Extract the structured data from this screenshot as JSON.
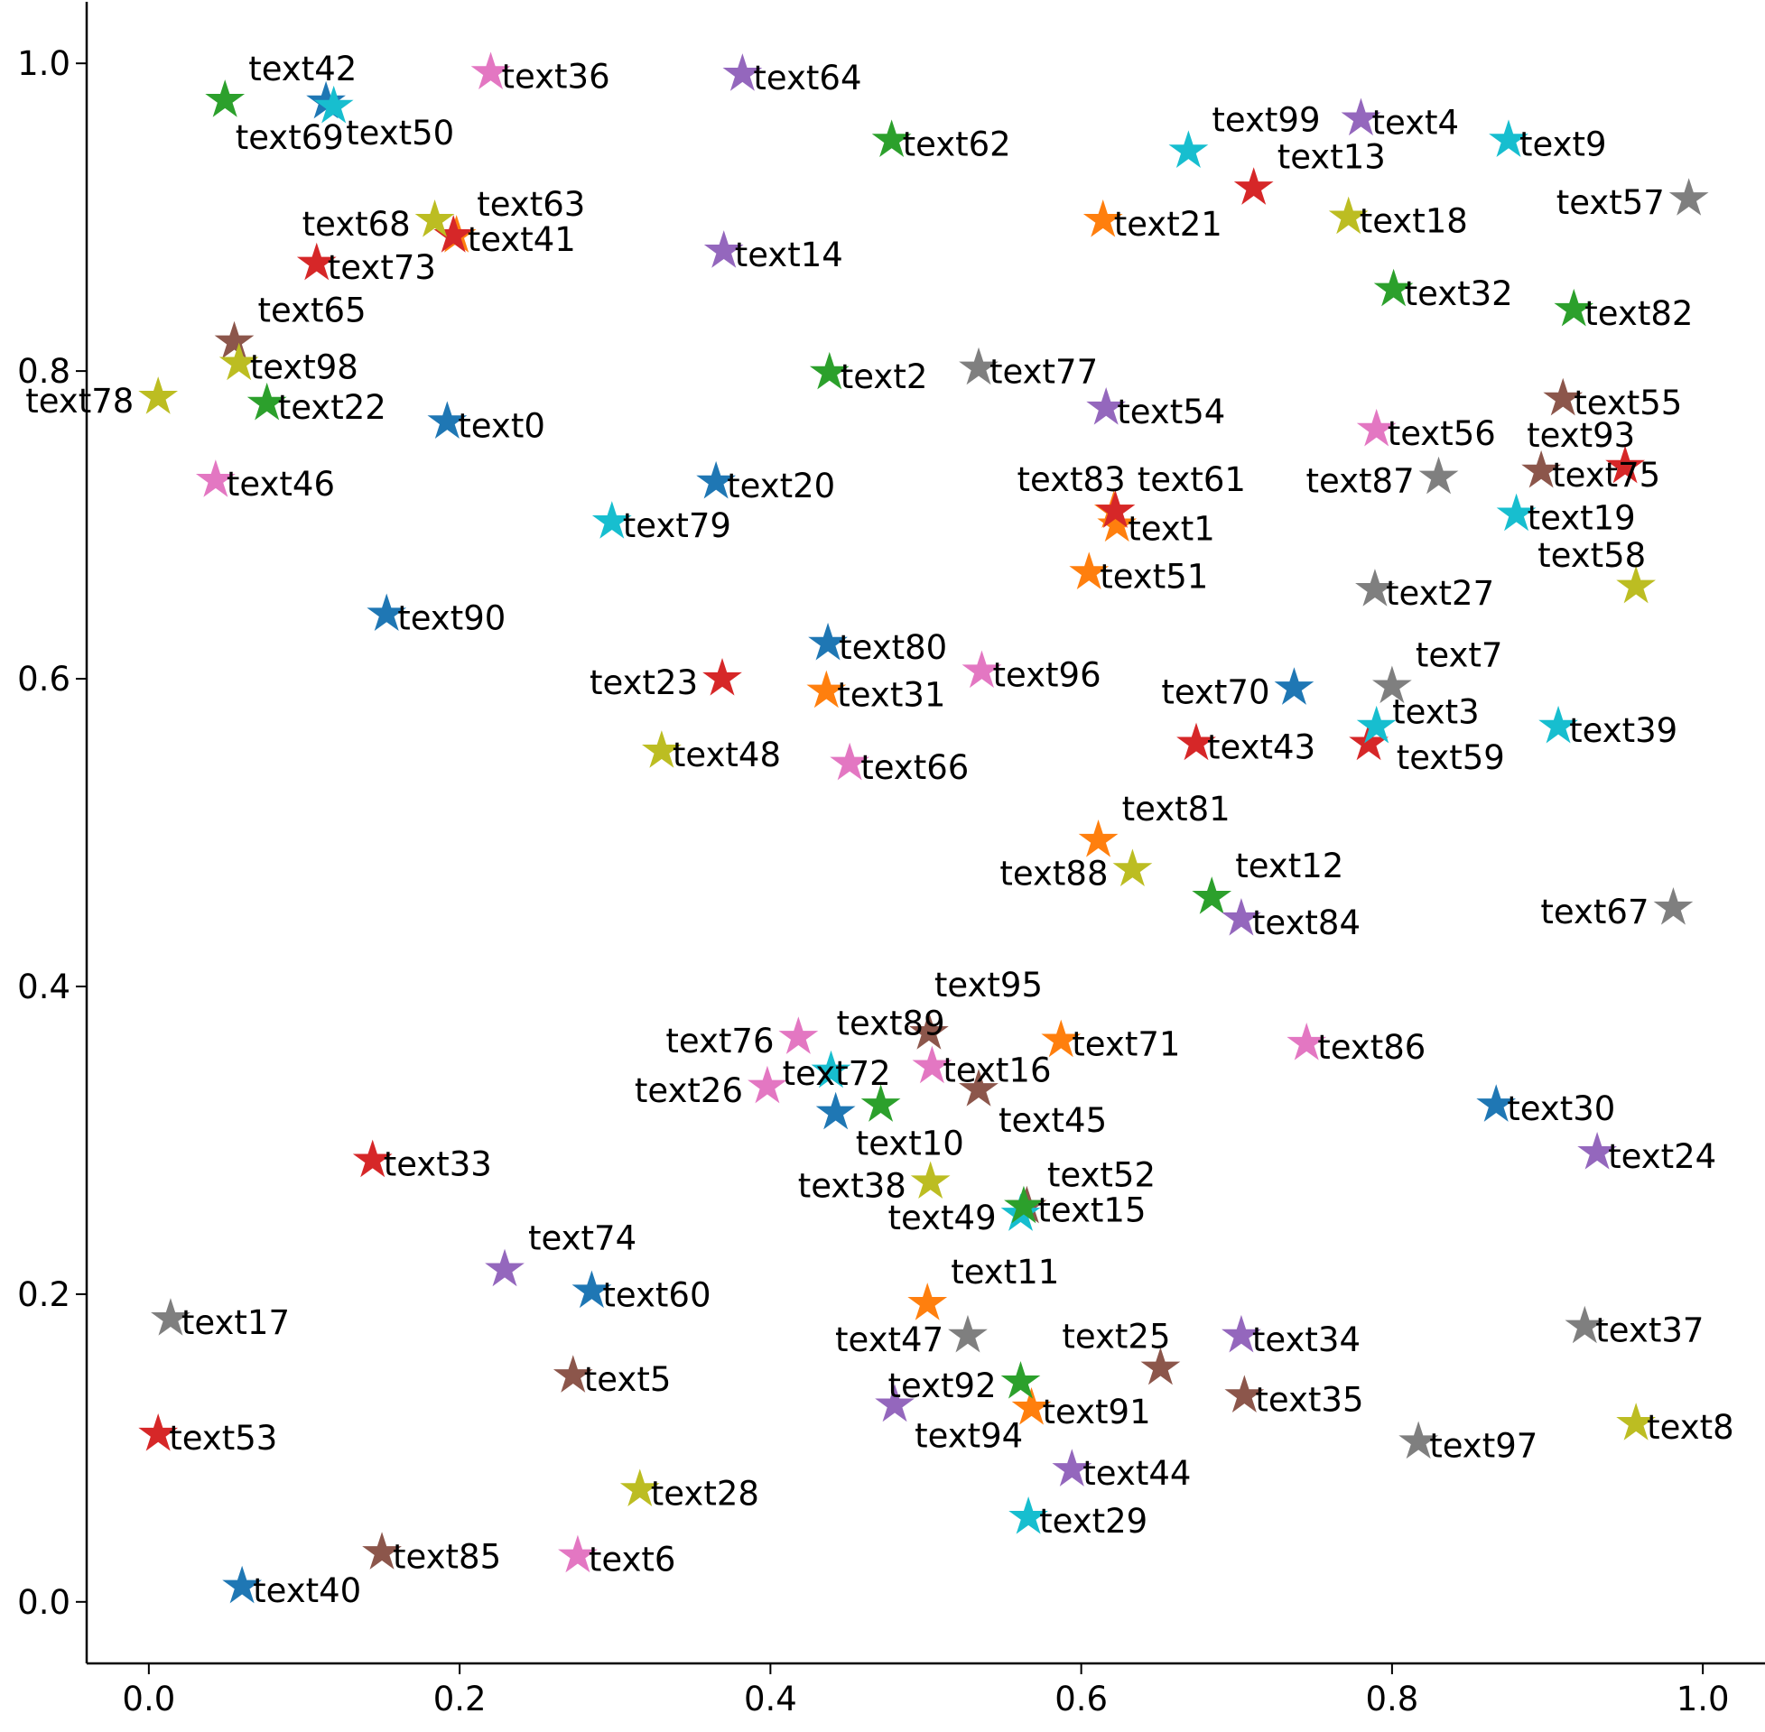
{
  "chart_data": {
    "type": "scatter",
    "title": "",
    "xlabel": "",
    "ylabel": "",
    "xlim": [
      -0.04,
      1.04
    ],
    "ylim": [
      -0.04,
      1.04
    ],
    "xticks": [
      "0.0",
      "0.2",
      "0.4",
      "0.6",
      "0.8",
      "1.0"
    ],
    "yticks": [
      "0.0",
      "0.2",
      "0.4",
      "0.6",
      "0.8",
      "1.0"
    ],
    "grid": false,
    "legend": "none",
    "marker": "star",
    "palette": [
      "#1f77b4",
      "#ff7f0e",
      "#2ca02c",
      "#d62728",
      "#9467bd",
      "#8c564b",
      "#e377c2",
      "#7f7f7f",
      "#bcbd22",
      "#17becf"
    ],
    "points": [
      {
        "label": "text0",
        "x": 0.192,
        "y": 0.767
      },
      {
        "label": "text1",
        "x": 0.623,
        "y": 0.7
      },
      {
        "label": "text2",
        "x": 0.438,
        "y": 0.799
      },
      {
        "label": "text3",
        "x": 0.785,
        "y": 0.558
      },
      {
        "label": "text4",
        "x": 0.78,
        "y": 0.964
      },
      {
        "label": "text5",
        "x": 0.273,
        "y": 0.147
      },
      {
        "label": "text6",
        "x": 0.276,
        "y": 0.03
      },
      {
        "label": "text7",
        "x": 0.8,
        "y": 0.595
      },
      {
        "label": "text8",
        "x": 0.957,
        "y": 0.116
      },
      {
        "label": "text9",
        "x": 0.875,
        "y": 0.95
      },
      {
        "label": "text10",
        "x": 0.442,
        "y": 0.318
      },
      {
        "label": "text11",
        "x": 0.501,
        "y": 0.194
      },
      {
        "label": "text12",
        "x": 0.684,
        "y": 0.458
      },
      {
        "label": "text13",
        "x": 0.711,
        "y": 0.919
      },
      {
        "label": "text14",
        "x": 0.37,
        "y": 0.878
      },
      {
        "label": "text15",
        "x": 0.565,
        "y": 0.257
      },
      {
        "label": "text16",
        "x": 0.504,
        "y": 0.348
      },
      {
        "label": "text17",
        "x": 0.014,
        "y": 0.184
      },
      {
        "label": "text18",
        "x": 0.772,
        "y": 0.9
      },
      {
        "label": "text19",
        "x": 0.88,
        "y": 0.707
      },
      {
        "label": "text20",
        "x": 0.365,
        "y": 0.728
      },
      {
        "label": "text21",
        "x": 0.614,
        "y": 0.898
      },
      {
        "label": "text22",
        "x": 0.076,
        "y": 0.779
      },
      {
        "label": "text23",
        "x": 0.369,
        "y": 0.6
      },
      {
        "label": "text24",
        "x": 0.932,
        "y": 0.292
      },
      {
        "label": "text25",
        "x": 0.651,
        "y": 0.152
      },
      {
        "label": "text26",
        "x": 0.398,
        "y": 0.335
      },
      {
        "label": "text27",
        "x": 0.789,
        "y": 0.658
      },
      {
        "label": "text28",
        "x": 0.316,
        "y": 0.073
      },
      {
        "label": "text29",
        "x": 0.566,
        "y": 0.055
      },
      {
        "label": "text30",
        "x": 0.867,
        "y": 0.323
      },
      {
        "label": "text31",
        "x": 0.436,
        "y": 0.592
      },
      {
        "label": "text32",
        "x": 0.801,
        "y": 0.853
      },
      {
        "label": "text33",
        "x": 0.144,
        "y": 0.287
      },
      {
        "label": "text34",
        "x": 0.703,
        "y": 0.173
      },
      {
        "label": "text35",
        "x": 0.705,
        "y": 0.134
      },
      {
        "label": "text36",
        "x": 0.22,
        "y": 0.994
      },
      {
        "label": "text37",
        "x": 0.924,
        "y": 0.179
      },
      {
        "label": "text38",
        "x": 0.503,
        "y": 0.273
      },
      {
        "label": "text39",
        "x": 0.907,
        "y": 0.569
      },
      {
        "label": "text40",
        "x": 0.06,
        "y": 0.01
      },
      {
        "label": "text41",
        "x": 0.198,
        "y": 0.888
      },
      {
        "label": "text42",
        "x": 0.049,
        "y": 0.976
      },
      {
        "label": "text43",
        "x": 0.674,
        "y": 0.558
      },
      {
        "label": "text44",
        "x": 0.594,
        "y": 0.086
      },
      {
        "label": "text45",
        "x": 0.534,
        "y": 0.333
      },
      {
        "label": "text46",
        "x": 0.043,
        "y": 0.729
      },
      {
        "label": "text47",
        "x": 0.527,
        "y": 0.173
      },
      {
        "label": "text48",
        "x": 0.33,
        "y": 0.553
      },
      {
        "label": "text49",
        "x": 0.561,
        "y": 0.252
      },
      {
        "label": "text50",
        "x": 0.114,
        "y": 0.975
      },
      {
        "label": "text51",
        "x": 0.605,
        "y": 0.669
      },
      {
        "label": "text52",
        "x": 0.563,
        "y": 0.257
      },
      {
        "label": "text53",
        "x": 0.006,
        "y": 0.109
      },
      {
        "label": "text54",
        "x": 0.616,
        "y": 0.776
      },
      {
        "label": "text55",
        "x": 0.91,
        "y": 0.782
      },
      {
        "label": "text56",
        "x": 0.79,
        "y": 0.762
      },
      {
        "label": "text57",
        "x": 0.991,
        "y": 0.912
      },
      {
        "label": "text58",
        "x": 0.957,
        "y": 0.66
      },
      {
        "label": "text59",
        "x": 0.79,
        "y": 0.569
      },
      {
        "label": "text60",
        "x": 0.285,
        "y": 0.202
      },
      {
        "label": "text61",
        "x": 0.621,
        "y": 0.709
      },
      {
        "label": "text62",
        "x": 0.478,
        "y": 0.95
      },
      {
        "label": "text63",
        "x": 0.196,
        "y": 0.888
      },
      {
        "label": "text64",
        "x": 0.382,
        "y": 0.993
      },
      {
        "label": "text65",
        "x": 0.055,
        "y": 0.819
      },
      {
        "label": "text66",
        "x": 0.451,
        "y": 0.545
      },
      {
        "label": "text67",
        "x": 0.981,
        "y": 0.451
      },
      {
        "label": "text68",
        "x": 0.184,
        "y": 0.898
      },
      {
        "label": "text69",
        "x": 0.119,
        "y": 0.972
      },
      {
        "label": "text70",
        "x": 0.737,
        "y": 0.594
      },
      {
        "label": "text71",
        "x": 0.587,
        "y": 0.365
      },
      {
        "label": "text72",
        "x": 0.471,
        "y": 0.323
      },
      {
        "label": "text73",
        "x": 0.108,
        "y": 0.87
      },
      {
        "label": "text74",
        "x": 0.229,
        "y": 0.216
      },
      {
        "label": "text75",
        "x": 0.896,
        "y": 0.735
      },
      {
        "label": "text76",
        "x": 0.418,
        "y": 0.367
      },
      {
        "label": "text77",
        "x": 0.534,
        "y": 0.802
      },
      {
        "label": "text78",
        "x": 0.006,
        "y": 0.783
      },
      {
        "label": "text79",
        "x": 0.298,
        "y": 0.702
      },
      {
        "label": "text80",
        "x": 0.437,
        "y": 0.623
      },
      {
        "label": "text81",
        "x": 0.611,
        "y": 0.495
      },
      {
        "label": "text82",
        "x": 0.917,
        "y": 0.84
      },
      {
        "label": "text83",
        "x": 0.622,
        "y": 0.709
      },
      {
        "label": "text84",
        "x": 0.703,
        "y": 0.444
      },
      {
        "label": "text85",
        "x": 0.15,
        "y": 0.032
      },
      {
        "label": "text86",
        "x": 0.745,
        "y": 0.363
      },
      {
        "label": "text87",
        "x": 0.83,
        "y": 0.731
      },
      {
        "label": "text88",
        "x": 0.633,
        "y": 0.476
      },
      {
        "label": "text89",
        "x": 0.439,
        "y": 0.345
      },
      {
        "label": "text90",
        "x": 0.153,
        "y": 0.642
      },
      {
        "label": "text91",
        "x": 0.568,
        "y": 0.126
      },
      {
        "label": "text92",
        "x": 0.561,
        "y": 0.143
      },
      {
        "label": "text93",
        "x": 0.95,
        "y": 0.738
      },
      {
        "label": "text94",
        "x": 0.48,
        "y": 0.128
      },
      {
        "label": "text95",
        "x": 0.502,
        "y": 0.37
      },
      {
        "label": "text96",
        "x": 0.536,
        "y": 0.605
      },
      {
        "label": "text97",
        "x": 0.817,
        "y": 0.104
      },
      {
        "label": "text98",
        "x": 0.058,
        "y": 0.805
      },
      {
        "label": "text99",
        "x": 0.669,
        "y": 0.943
      }
    ]
  }
}
